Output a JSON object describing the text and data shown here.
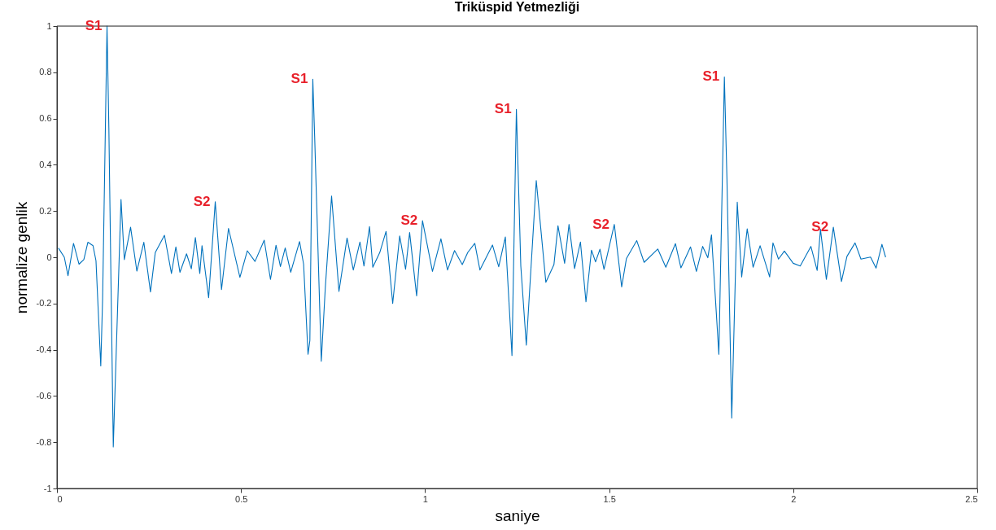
{
  "chart_data": {
    "type": "line",
    "title": "Triküspid Yetmezliği",
    "xlabel": "saniye",
    "ylabel": "normalize genlik",
    "xlim": [
      0,
      2.5
    ],
    "xticks": [
      0,
      0.5,
      1,
      1.5,
      2,
      2.5
    ],
    "ylim": [
      -1,
      1
    ],
    "yticks": [
      -1,
      -0.8,
      -0.6,
      -0.4,
      -0.2,
      0,
      0.2,
      0.4,
      0.6,
      0.8,
      1
    ],
    "grid": false,
    "marker": "none",
    "line_style": "solid",
    "series": [
      {
        "color": "#0072bd",
        "x": [
          0.004,
          0.02,
          0.03,
          0.045,
          0.06,
          0.073,
          0.084,
          0.098,
          0.106,
          0.119,
          0.124,
          0.136,
          0.141,
          0.153,
          0.161,
          0.174,
          0.183,
          0.2,
          0.217,
          0.236,
          0.254,
          0.267,
          0.292,
          0.311,
          0.323,
          0.334,
          0.352,
          0.365,
          0.376,
          0.388,
          0.394,
          0.412,
          0.43,
          0.447,
          0.466,
          0.497,
          0.517,
          0.538,
          0.563,
          0.58,
          0.595,
          0.607,
          0.62,
          0.635,
          0.659,
          0.67,
          0.682,
          0.687,
          0.695,
          0.7,
          0.718,
          0.729,
          0.746,
          0.766,
          0.788,
          0.805,
          0.823,
          0.834,
          0.849,
          0.858,
          0.877,
          0.894,
          0.912,
          0.931,
          0.947,
          0.958,
          0.977,
          0.993,
          1.02,
          1.043,
          1.061,
          1.08,
          1.101,
          1.116,
          1.135,
          1.149,
          1.183,
          1.2,
          1.218,
          1.236,
          1.248,
          1.26,
          1.275,
          1.302,
          1.328,
          1.35,
          1.361,
          1.379,
          1.391,
          1.406,
          1.422,
          1.437,
          1.452,
          1.463,
          1.475,
          1.486,
          1.514,
          1.534,
          1.547,
          1.575,
          1.595,
          1.632,
          1.654,
          1.68,
          1.695,
          1.721,
          1.737,
          1.754,
          1.768,
          1.778,
          1.798,
          1.813,
          1.82,
          1.833,
          1.848,
          1.86,
          1.875,
          1.891,
          1.91,
          1.936,
          1.945,
          1.96,
          1.976,
          2.0,
          2.019,
          2.048,
          2.065,
          2.074,
          2.09,
          2.109,
          2.131,
          2.146,
          2.168,
          2.184,
          2.21,
          2.225,
          2.241,
          2.251
        ],
        "values": [
          0.04,
          0.0,
          -0.08,
          0.06,
          -0.03,
          -0.01,
          0.065,
          0.05,
          -0.015,
          -0.47,
          -0.18,
          1.0,
          0.56,
          -0.82,
          -0.41,
          0.25,
          -0.01,
          0.13,
          -0.06,
          0.065,
          -0.15,
          0.02,
          0.095,
          -0.07,
          0.045,
          -0.065,
          0.015,
          -0.05,
          0.085,
          -0.07,
          0.05,
          -0.175,
          0.24,
          -0.14,
          0.125,
          -0.087,
          0.028,
          -0.018,
          0.074,
          -0.096,
          0.052,
          -0.04,
          0.04,
          -0.065,
          0.068,
          -0.03,
          -0.42,
          -0.36,
          0.77,
          0.525,
          -0.45,
          -0.13,
          0.265,
          -0.148,
          0.083,
          -0.055,
          0.066,
          -0.038,
          0.133,
          -0.043,
          0.021,
          0.112,
          -0.2,
          0.092,
          -0.052,
          0.107,
          -0.167,
          0.158,
          -0.061,
          0.08,
          -0.055,
          0.029,
          -0.032,
          0.021,
          0.06,
          -0.055,
          0.053,
          -0.041,
          0.088,
          -0.425,
          0.64,
          -0.038,
          -0.38,
          0.332,
          -0.108,
          -0.032,
          0.136,
          -0.026,
          0.142,
          -0.049,
          0.066,
          -0.193,
          0.031,
          -0.02,
          0.035,
          -0.052,
          0.142,
          -0.128,
          -0.005,
          0.072,
          -0.022,
          0.036,
          -0.043,
          0.059,
          -0.046,
          0.045,
          -0.061,
          0.047,
          -0.002,
          0.097,
          -0.42,
          0.78,
          0.338,
          -0.695,
          0.238,
          -0.085,
          0.123,
          -0.043,
          0.05,
          -0.085,
          0.062,
          -0.008,
          0.027,
          -0.026,
          -0.038,
          0.047,
          -0.057,
          0.121,
          -0.096,
          0.13,
          -0.105,
          0.004,
          0.062,
          -0.008,
          0.001,
          -0.047,
          0.056,
          0.0
        ]
      }
    ],
    "annotations": [
      {
        "text": "S1",
        "x": 0.136,
        "y": 1.0
      },
      {
        "text": "S2",
        "x": 0.43,
        "y": 0.24
      },
      {
        "text": "S1",
        "x": 0.695,
        "y": 0.77
      },
      {
        "text": "S2",
        "x": 0.993,
        "y": 0.158
      },
      {
        "text": "S1",
        "x": 1.248,
        "y": 0.64
      },
      {
        "text": "S2",
        "x": 1.514,
        "y": 0.142
      },
      {
        "text": "S1",
        "x": 1.813,
        "y": 0.78
      },
      {
        "text": "S2",
        "x": 2.109,
        "y": 0.13
      }
    ]
  }
}
